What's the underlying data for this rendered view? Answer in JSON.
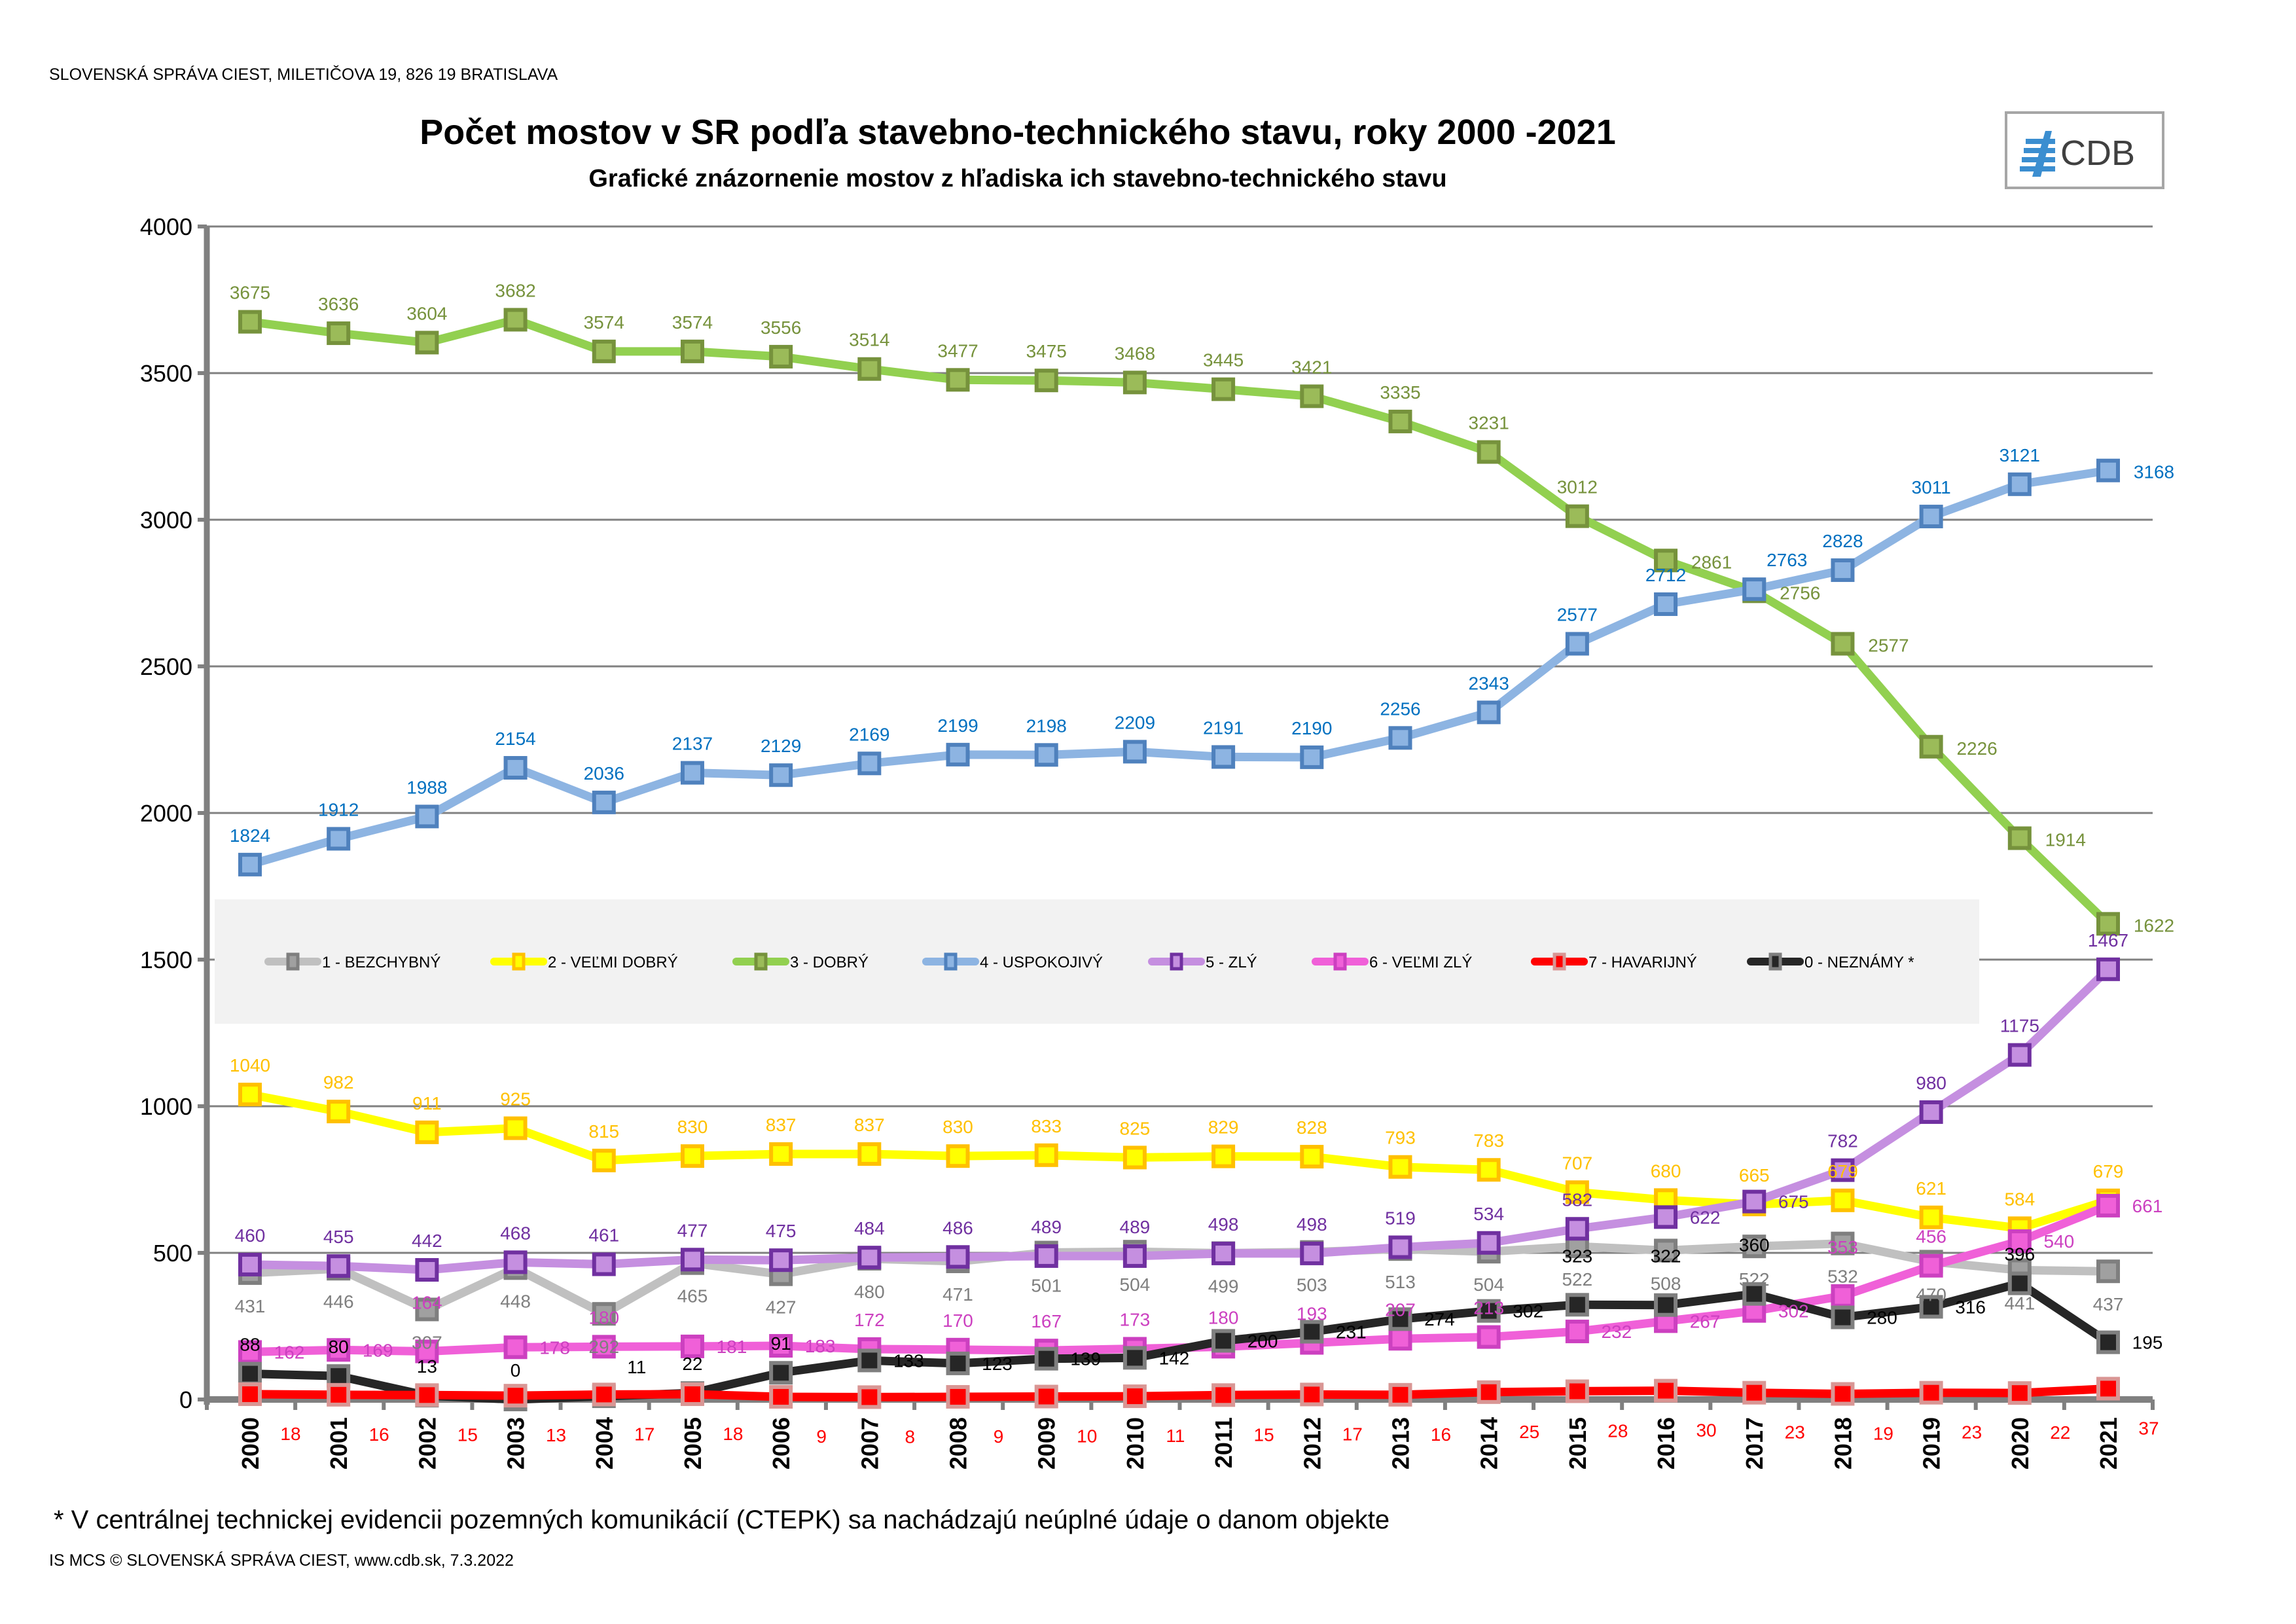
{
  "header": {
    "organization": "SLOVENSKÁ SPRÁVA CIEST, MILETIČOVA 19, 826 19  BRATISLAVA",
    "logo_text": "CDB"
  },
  "footer": {
    "note": "*  V centrálnej  technickej evidencii pozemných komunikácií (CTEPK) sa nachádzajú neúplné údaje o danom objekte",
    "copyright": "IS MCS © SLOVENSKÁ SPRÁVA CIEST, www.cdb.sk, 7.3.2022"
  },
  "chart_data": {
    "type": "line",
    "title": "Počet mostov v SR podľa stavebno-technického stavu, roky 2000 -2021",
    "subtitle": "Grafické znázornenie mostov z hľadiska ich stavebno-technického stavu",
    "xlabel": "",
    "ylabel": "",
    "ylim": [
      0,
      4000
    ],
    "yticks": [
      "0",
      "500",
      "1000",
      "1500",
      "2000",
      "2500",
      "3000",
      "3500",
      "4000"
    ],
    "grid": true,
    "legend_placement": "center band",
    "x": [
      "2000",
      "2001",
      "2002",
      "2003",
      "2004",
      "2005",
      "2006",
      "2007",
      "2008",
      "2009",
      "2010",
      "2011",
      "2012",
      "2013",
      "2014",
      "2015",
      "2016",
      "2017",
      "2018",
      "2019",
      "2020",
      "2021"
    ],
    "series": [
      {
        "name": "1 - BEZCHYBNÝ",
        "color": "#c0c0c0",
        "marker": "#a0a0a0",
        "edge": "#7f7f7f",
        "label_color": "#7f7f7f",
        "values": [
          431,
          446,
          307,
          448,
          292,
          465,
          427,
          480,
          471,
          501,
          504,
          499,
          503,
          513,
          504,
          522,
          508,
          522,
          532,
          470,
          441,
          437
        ]
      },
      {
        "name": "2 - VEĽMI DOBRÝ",
        "color": "#ffff00",
        "marker": "#ffff00",
        "edge": "#ffc000",
        "label_color": "#ffc000",
        "values": [
          1040,
          982,
          911,
          925,
          815,
          830,
          837,
          837,
          830,
          833,
          825,
          829,
          828,
          793,
          783,
          707,
          680,
          665,
          679,
          621,
          584,
          679
        ]
      },
      {
        "name": "3 - DOBRÝ",
        "color": "#92d050",
        "marker": "#9bbb59",
        "edge": "#76923c",
        "label_color": "#76923c",
        "values": [
          3675,
          3636,
          3604,
          3682,
          3574,
          3574,
          3556,
          3514,
          3477,
          3475,
          3468,
          3445,
          3421,
          3335,
          3231,
          3012,
          2861,
          2756,
          2577,
          2226,
          1914,
          1622
        ]
      },
      {
        "name": "4 - USPOKOJIVÝ",
        "color": "#8db4e2",
        "marker": "#8db4e2",
        "edge": "#4f81bd",
        "label_color": "#0070c0",
        "values": [
          1824,
          1912,
          1988,
          2154,
          2036,
          2137,
          2129,
          2169,
          2199,
          2198,
          2209,
          2191,
          2190,
          2256,
          2343,
          2577,
          2712,
          2763,
          2828,
          3011,
          3121,
          3168
        ]
      },
      {
        "name": "5 - ZLÝ",
        "color": "#c58fe0",
        "marker": "#c58fe0",
        "edge": "#7030a0",
        "label_color": "#7030a0",
        "values": [
          460,
          455,
          442,
          468,
          461,
          477,
          475,
          484,
          486,
          489,
          489,
          498,
          498,
          519,
          534,
          582,
          622,
          675,
          782,
          980,
          1175,
          1467
        ]
      },
      {
        "name": "6 - VEĽMI ZLÝ",
        "color": "#f060d8",
        "marker": "#f060d8",
        "edge": "#cc40c0",
        "label_color": "#cc40c0",
        "values": [
          162,
          169,
          164,
          178,
          180,
          181,
          183,
          172,
          170,
          167,
          173,
          180,
          193,
          207,
          213,
          232,
          267,
          302,
          353,
          456,
          540,
          661
        ]
      },
      {
        "name": "7 - HAVARIJNÝ",
        "color": "#ff0000",
        "marker": "#ff0000",
        "edge": "#d99694",
        "label_color": "#ff0000",
        "values": [
          18,
          16,
          15,
          13,
          17,
          18,
          9,
          8,
          9,
          10,
          11,
          15,
          17,
          16,
          25,
          28,
          30,
          23,
          19,
          23,
          22,
          37
        ]
      },
      {
        "name": "0 - NEZNÁMY  *",
        "color": "#262626",
        "marker": "#262626",
        "edge": "#7f7f7f",
        "label_color": "#000000",
        "values": [
          88,
          80,
          13,
          0,
          11,
          22,
          91,
          133,
          123,
          139,
          142,
          200,
          231,
          274,
          302,
          323,
          322,
          360,
          280,
          316,
          396,
          195
        ]
      }
    ]
  }
}
